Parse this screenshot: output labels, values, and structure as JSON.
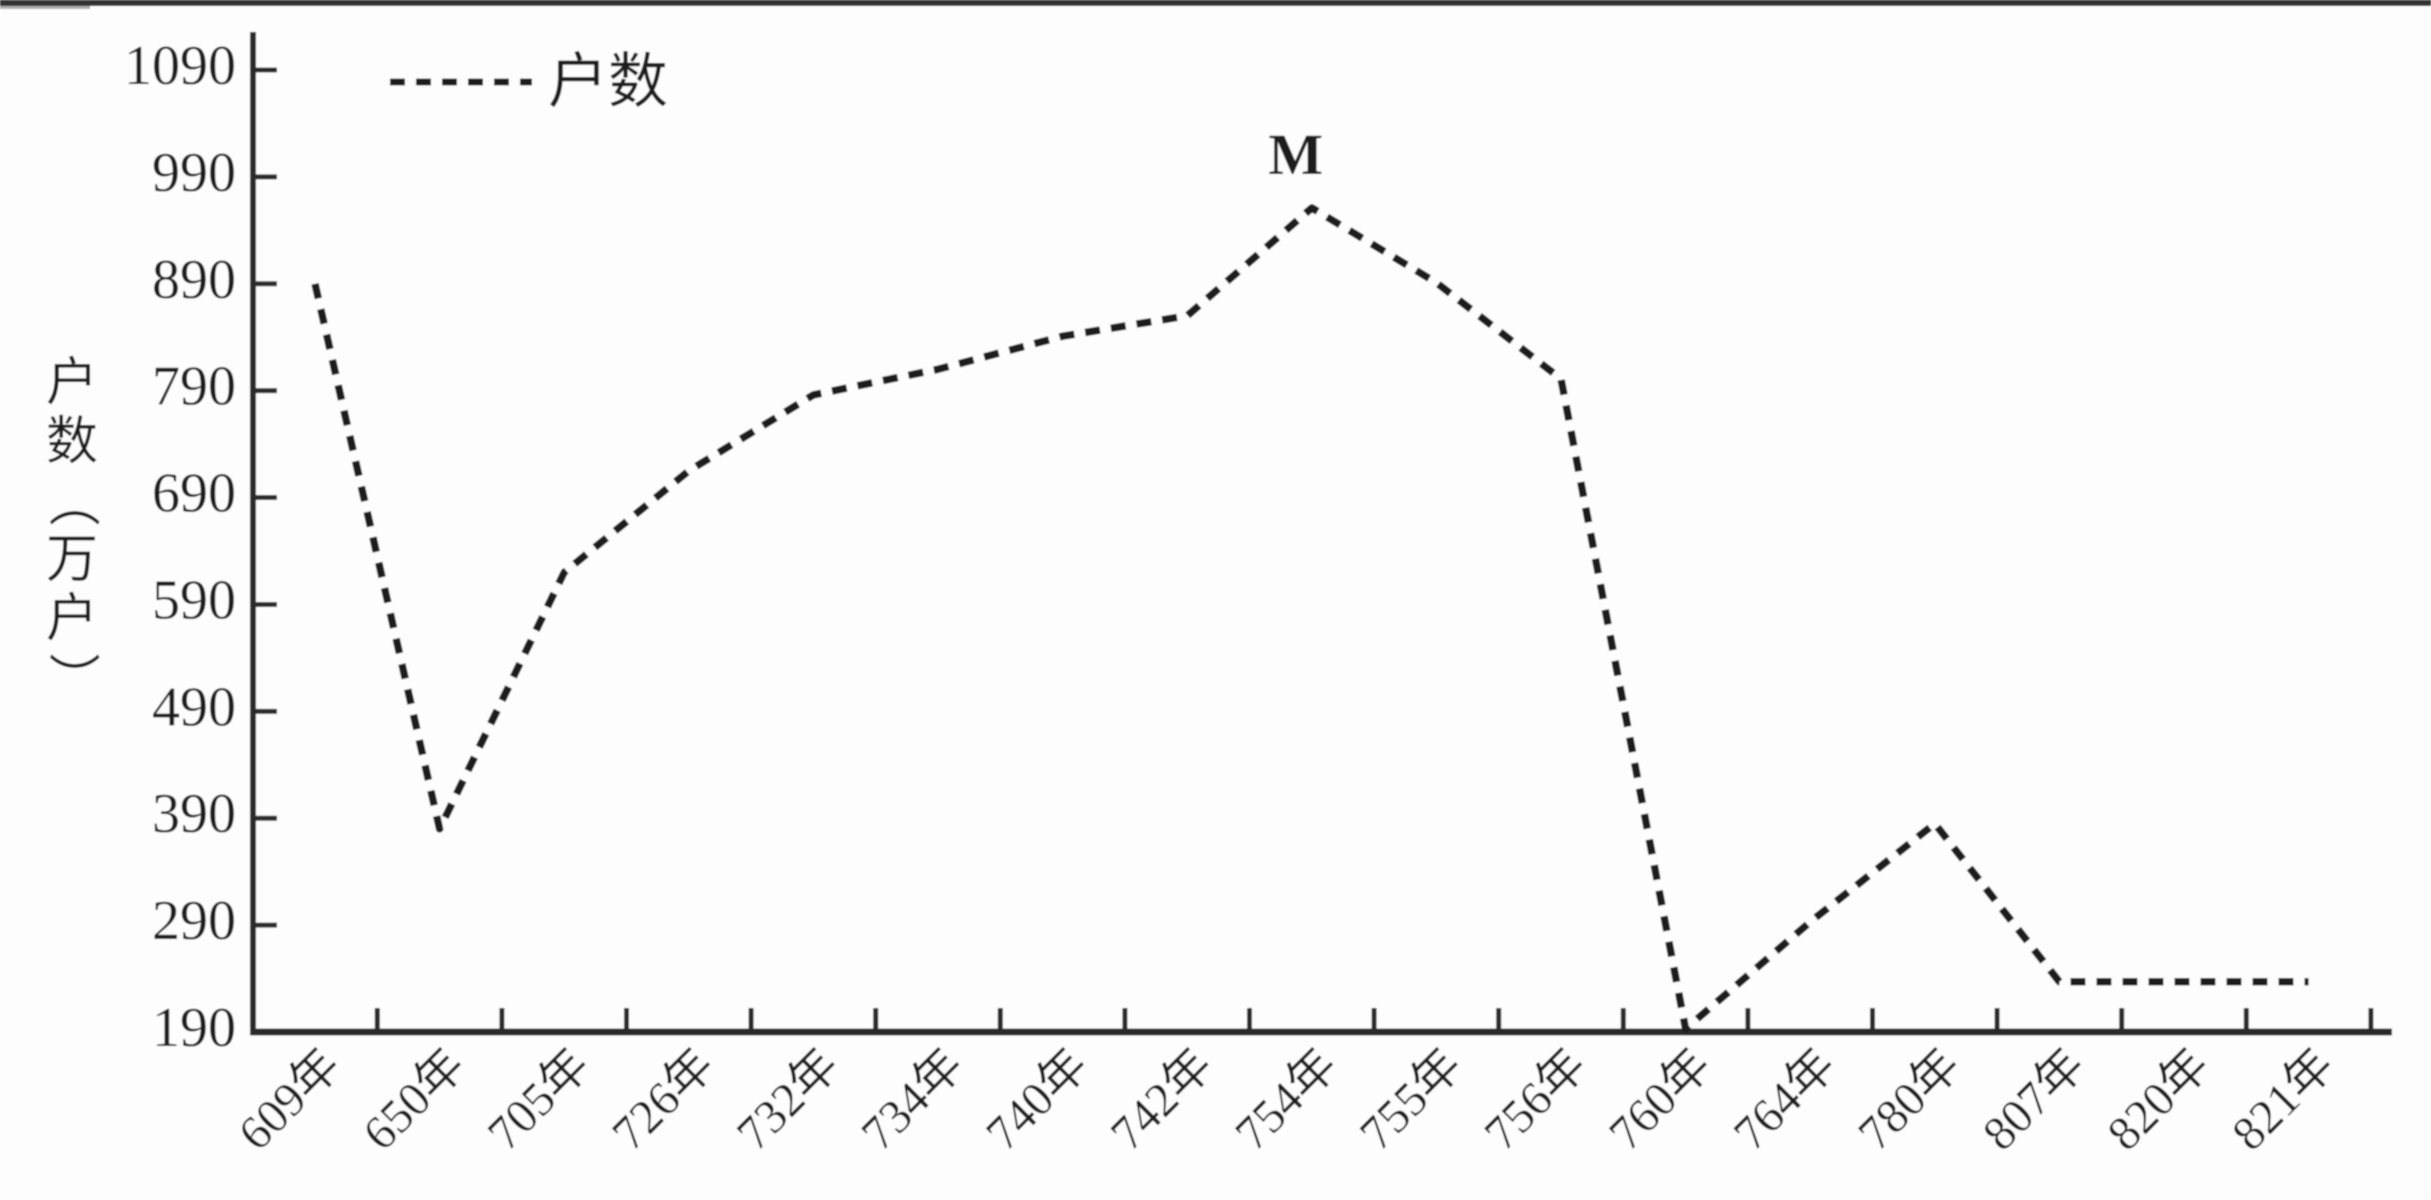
{
  "chart_data": {
    "type": "line",
    "title": "",
    "categories": [
      "609年",
      "650年",
      "705年",
      "726年",
      "732年",
      "734年",
      "740年",
      "742年",
      "754年",
      "755年",
      "756年",
      "760年",
      "764年",
      "780年",
      "807年",
      "820年",
      "821年"
    ],
    "series": [
      {
        "name": "户数",
        "values": [
          890,
          380,
          620,
          715,
          786,
          810,
          841,
          860,
          961,
          891,
          801,
          193,
          293,
          385,
          237,
          237,
          237
        ]
      }
    ],
    "xlabel": "",
    "ylabel": "户数（万户）",
    "ylim": [
      190,
      1090
    ],
    "yticks": [
      1090,
      990,
      890,
      790,
      690,
      590,
      490,
      390,
      290,
      190
    ],
    "x_tick_unit": "年",
    "grid": false,
    "legend_position": "top-left",
    "legend_label": "户数",
    "line_style": "dashed",
    "annotations": [
      {
        "text": "M",
        "category": "754年",
        "value": 961,
        "position": "above-peak"
      }
    ],
    "colors": {
      "line": "#1c1c1c",
      "axis": "#2b2b2b",
      "text": "#1f1f1f",
      "background": "#fdfdfd",
      "scan_edge_artifact": "#161616"
    }
  },
  "y_axis": {
    "title_chars": [
      "户",
      "数",
      "（",
      "万",
      "户",
      "）"
    ],
    "tick_labels": [
      "1090",
      "990",
      "890",
      "790",
      "690",
      "590",
      "490",
      "390",
      "290",
      "190"
    ]
  },
  "legend": {
    "label": "户数"
  },
  "peak_annotation": {
    "label": "M"
  }
}
